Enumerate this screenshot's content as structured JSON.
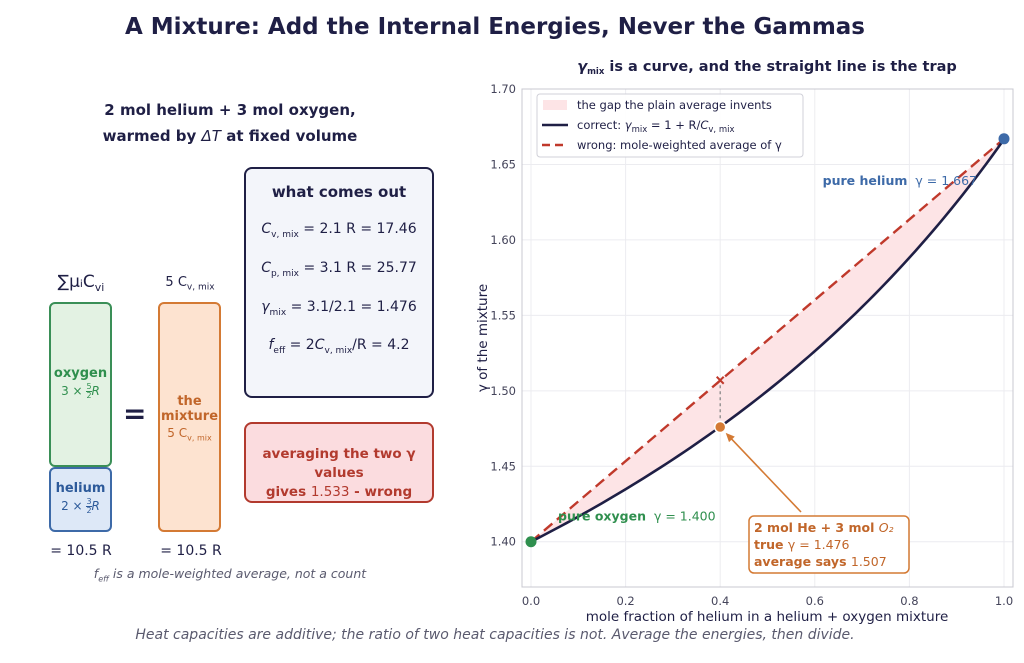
{
  "title": "A Mixture: Add the Internal Energies, Never the Gammas",
  "left": {
    "heading_line1": "2 mol helium  +  3 mol oxygen,",
    "heading_line2_pre": "warmed by ",
    "heading_line2_sym": "ΔT",
    "heading_line2_post": " at fixed volume",
    "sum_label": "∑μᵢC",
    "sum_label_sub": "vi",
    "mix_top_label": "5 C",
    "mix_top_label_sub": "v, mix",
    "oxygen_name": "oxygen",
    "oxygen_coef": "3 × ",
    "oxygen_frac_num": "5",
    "oxygen_frac_den": "2",
    "oxygen_R": "R",
    "helium_name": "helium",
    "helium_coef": "2 × ",
    "helium_frac_num": "3",
    "helium_frac_den": "2",
    "helium_R": "R",
    "mixture_name_line1": "the",
    "mixture_name_line2": "mixture",
    "mixture_cv": "5 C",
    "mixture_cv_sub": "v, mix",
    "equals": "=",
    "left_total": "= 10.5 R",
    "right_total": "= 10.5 R",
    "note_pre": "f",
    "note_sub": "eff",
    "note_post": " is a mole-weighted average, not a count"
  },
  "outbox": {
    "heading": "what comes out",
    "lines": [
      "C_v,mix = 2.1 R = 17.46",
      "C_p,mix = 3.1 R = 25.77",
      "γ_mix = 3.1/2.1 = 1.476",
      "f_eff = 2C_v,mix/R = 4.2"
    ]
  },
  "wrongbox": {
    "line1": "averaging the two γ values",
    "line2_pre": "gives ",
    "line2_num": "1.533",
    "line2_post": " - wrong"
  },
  "chart_data": {
    "type": "line",
    "title": "γ_mix is a curve, and the straight line is the trap",
    "xlabel": "mole fraction of helium in a helium + oxygen mixture",
    "ylabel": "γ  of the mixture",
    "xlim": [
      0,
      1
    ],
    "ylim": [
      1.37,
      1.7
    ],
    "xticks": [
      "0.0",
      "0.2",
      "0.4",
      "0.6",
      "0.8",
      "1.0"
    ],
    "yticks": [
      "1.40",
      "1.45",
      "1.50",
      "1.55",
      "1.60",
      "1.65",
      "1.70"
    ],
    "grid": true,
    "legend_position": "top-left",
    "legend": [
      "the gap the plain average invents",
      "correct: γ_mix = 1 + R/C_v,mix",
      "wrong: mole-weighted average of γ"
    ],
    "series": [
      {
        "name": "correct: γ_mix = 1 + R/C_v,mix",
        "color": "#1f1f45",
        "style": "solid",
        "x": [
          0,
          0.05,
          0.1,
          0.15,
          0.2,
          0.25,
          0.3,
          0.35,
          0.4,
          0.45,
          0.5,
          0.55,
          0.6,
          0.65,
          0.7,
          0.75,
          0.8,
          0.85,
          0.9,
          0.95,
          1.0
        ],
        "y": [
          1.4,
          1.4093,
          1.4189,
          1.4289,
          1.4392,
          1.45,
          1.4612,
          1.4728,
          1.4762,
          1.4975,
          1.5106,
          1.5243,
          1.5385,
          1.5534,
          1.569,
          1.5854,
          1.6026,
          1.6206,
          1.6393,
          1.6592,
          1.6667
        ]
      },
      {
        "name": "wrong: mole-weighted average of γ",
        "color": "#c0392b",
        "style": "dashed",
        "x": [
          0,
          1
        ],
        "y": [
          1.4,
          1.667
        ]
      }
    ],
    "points": [
      {
        "label": "pure oxygen",
        "gamma_text": "γ = 1.400",
        "x": 0,
        "y": 1.4,
        "color": "#2f8f4e"
      },
      {
        "label": "pure helium",
        "gamma_text": "γ = 1.667",
        "x": 1,
        "y": 1.667,
        "color": "#3d6aa8"
      },
      {
        "label": "mixture",
        "x": 0.4,
        "y": 1.476,
        "color": "#d47a34"
      }
    ],
    "wrong_marker": {
      "x": 0.4,
      "y": 1.507
    },
    "annotation": {
      "line1_pre": "2 mol He + 3 mol ",
      "line1_sym": "O₂",
      "line2_pre": "true ",
      "line2_val": "γ = 1.476",
      "line3_pre": "average says ",
      "line3_val": "1.507"
    }
  },
  "footer": "Heat capacities are additive; the ratio of two heat capacities is not. Average the energies, then divide."
}
